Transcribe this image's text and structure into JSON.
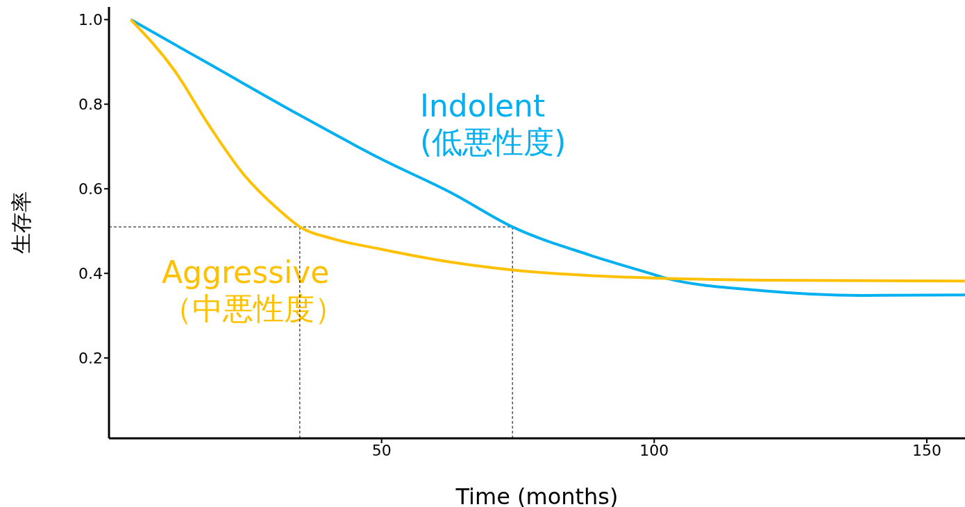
{
  "chart_data": {
    "type": "line",
    "xlabel": "Time (months)",
    "ylabel": "生存率",
    "xlim": [
      0,
      157
    ],
    "ylim": [
      0.01,
      1.03
    ],
    "xticks": [
      50,
      100,
      150
    ],
    "yticks": [
      {
        "value": 0.2,
        "label": "0.2"
      },
      {
        "value": 0.4,
        "label": "0.4"
      },
      {
        "value": 0.6,
        "label": "0.6"
      },
      {
        "value": 0.8,
        "label": "0.8"
      },
      {
        "value": 1,
        "label": "1.0"
      }
    ],
    "marker": "none",
    "line_style": "solid",
    "series": [
      {
        "name": "Indolent (低悪性度)",
        "color": "#00b0f0",
        "x": [
          4,
          18.4,
          35,
          50,
          63,
          74,
          88,
          100,
          102,
          120,
          138,
          157
        ],
        "values": [
          1.0,
          0.895,
          0.774,
          0.67,
          0.589,
          0.51,
          0.444,
          0.397,
          0.389,
          0.359,
          0.348,
          0.349
        ]
      },
      {
        "name": "Aggressive （中悪性度）",
        "color": "#ffc000",
        "x": [
          4,
          12,
          18.4,
          24.7,
          31,
          35,
          41,
          50,
          63,
          74,
          88,
          100,
          120,
          157
        ],
        "values": [
          1.0,
          0.88,
          0.749,
          0.634,
          0.552,
          0.51,
          0.482,
          0.457,
          0.426,
          0.408,
          0.395,
          0.389,
          0.384,
          0.382
        ]
      }
    ],
    "ref_lines": [
      {
        "axis": "y",
        "value": 0.51,
        "color": "#000000",
        "line_style": "dashed"
      },
      {
        "axis": "x",
        "value": 35,
        "color": "#000000",
        "line_style": "dashed"
      },
      {
        "axis": "x",
        "value": 74,
        "color": "#000000",
        "line_style": "dashed"
      }
    ]
  }
}
